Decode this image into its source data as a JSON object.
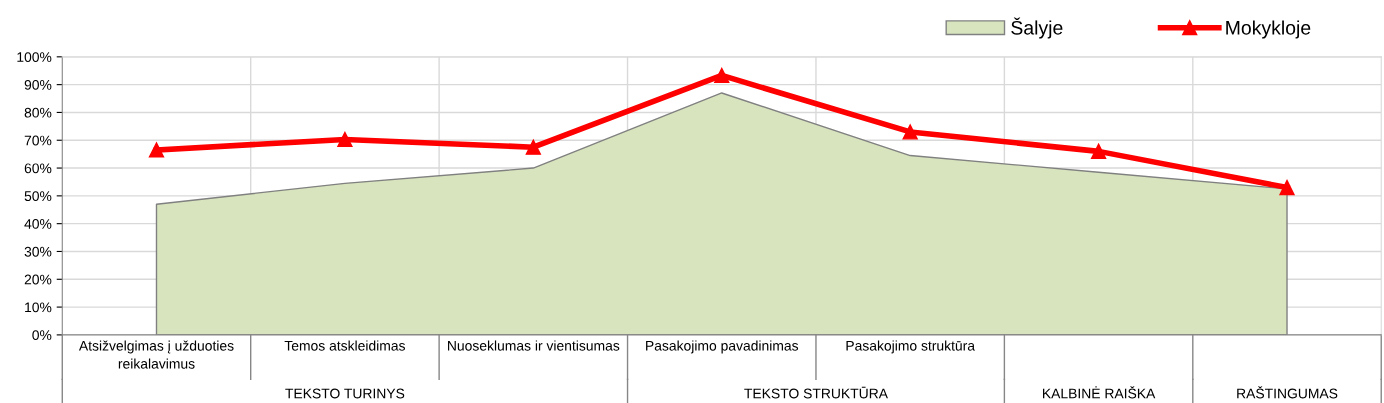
{
  "chart_data": {
    "type": "area",
    "categories": [
      "Atsižvelgimas į užduoties\nreikalavimus",
      "Temos atskleidimas",
      "Nuoseklumas ir vientisumas",
      "Pasakojimo pavadinimas",
      "Pasakojimo struktūra",
      null,
      null
    ],
    "series": [
      {
        "name": "Šalyje",
        "color": "#d7e4bd",
        "values": [
          47,
          54.5,
          60,
          87,
          64.5,
          58.5,
          52.5
        ]
      },
      {
        "name": "Mokykloje",
        "type": "line",
        "color": "#ff0000",
        "marker": "triangle",
        "values": [
          66.5,
          70.3,
          67.5,
          93.3,
          73,
          66,
          53
        ]
      }
    ],
    "annotations": [
      "TEKSTO TURINYS",
      "TEKSTO STRUKTŪRA",
      "KALBINĖ RAIŠKA",
      "RAŠTINGUMAS"
    ],
    "ylim": [
      0,
      100
    ],
    "yticks": [
      {
        "value": 0,
        "label": "0%"
      },
      {
        "value": 10,
        "label": "10%"
      },
      {
        "value": 20,
        "label": "20%"
      },
      {
        "value": 30,
        "label": "30%"
      },
      {
        "value": 40,
        "label": "40%"
      },
      {
        "value": 50,
        "label": "50%"
      },
      {
        "value": 60,
        "label": "60%"
      },
      {
        "value": 70,
        "label": "70%"
      },
      {
        "value": 80,
        "label": "80%"
      },
      {
        "value": 90,
        "label": "90%"
      },
      {
        "value": 100,
        "label": "100%"
      }
    ],
    "grid": true,
    "legend": "top right"
  }
}
